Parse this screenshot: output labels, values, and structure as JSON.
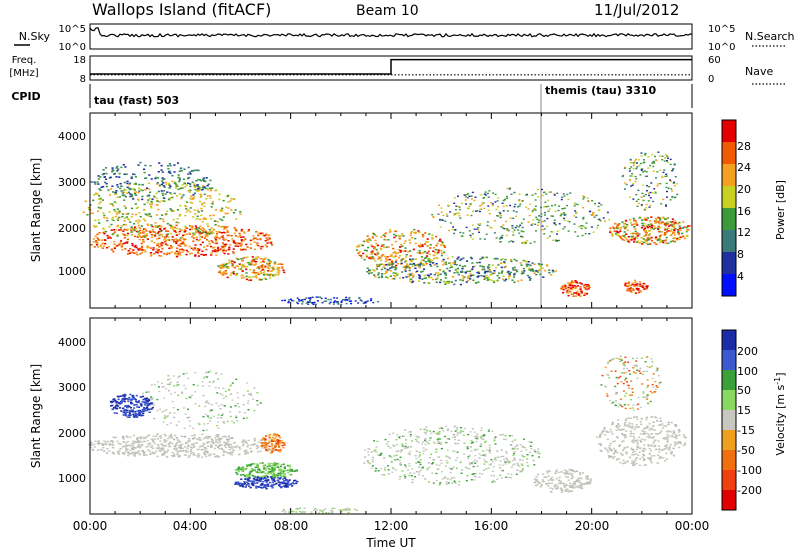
{
  "header": {
    "station": "Wallops Island (fitACF)",
    "beam": "Beam 10",
    "date": "11/Jul/2012"
  },
  "noise_panel": {
    "left_label": "N.Sky",
    "right_label": "N.Search",
    "left_ticks": [
      "10^5",
      "10^0"
    ],
    "right_ticks": [
      "10^5",
      "10^0"
    ]
  },
  "freq_panel": {
    "left_label_1": "Freq.",
    "left_label_2": "[MHz]",
    "right_label": "Nave",
    "left_ticks": [
      "18",
      "8"
    ],
    "right_ticks": [
      "60",
      "0"
    ]
  },
  "cpid_panel": {
    "label": "CPID",
    "modes": [
      {
        "name": "tau (fast) 503",
        "start_hour": 0
      },
      {
        "name": "themis (tau) 3310",
        "start_hour": 18.1
      }
    ]
  },
  "power_panel": {
    "ylabel": "Slant Range [km]",
    "yticks": [
      "4000",
      "3000",
      "2000",
      "1000"
    ],
    "colorbar_label": "Power [dB]",
    "colorbar_ticks": [
      "28",
      "24",
      "20",
      "16",
      "12",
      "8",
      "4"
    ]
  },
  "velocity_panel": {
    "ylabel": "Slant Range [km]",
    "yticks": [
      "4000",
      "3000",
      "2000",
      "1000"
    ],
    "colorbar_label": "Velocity [m s",
    "colorbar_label_sup": "-1",
    "colorbar_label_end": "]",
    "colorbar_ticks": [
      "200",
      "100",
      "50",
      "15",
      "-15",
      "-50",
      "-100",
      "-200"
    ]
  },
  "xaxis": {
    "label": "Time UT",
    "ticks": [
      "00:00",
      "04:00",
      "08:00",
      "12:00",
      "16:00",
      "20:00",
      "00:00"
    ]
  },
  "colors": {
    "power_scale": [
      "#e50000",
      "#f05a00",
      "#f5a020",
      "#c8d020",
      "#3c9a3c",
      "#3a7a7a",
      "#2030a0",
      "#0010ff"
    ],
    "velocity_scale": [
      "#1c2ca8",
      "#3c5ad0",
      "#3aa03a",
      "#8ad860",
      "#c8c8c0",
      "#f0a020",
      "#f07010",
      "#f04010",
      "#e00000"
    ]
  },
  "chart_data": [
    {
      "type": "line",
      "title": "N.Sky / N.Search",
      "x_range_hours": [
        0,
        24
      ],
      "left_axis": {
        "ticks": [
          "10^0",
          "10^5"
        ],
        "scale": "log"
      },
      "right_axis": {
        "ticks": [
          "10^0",
          "10^5"
        ],
        "scale": "log"
      },
      "series": [
        {
          "name": "N.Sky",
          "style": "solid",
          "level_fraction": 0.55
        },
        {
          "name": "N.Search",
          "style": "dotted"
        }
      ]
    },
    {
      "type": "line",
      "x_range_hours": [
        0,
        24
      ],
      "left_axis": {
        "label": "Freq. [MHz]",
        "range": [
          8,
          18
        ]
      },
      "right_axis": {
        "label": "Nave",
        "range": [
          0,
          60
        ]
      },
      "series": [
        {
          "name": "Freq.",
          "style": "solid",
          "x": [
            0,
            12,
            12,
            24
          ],
          "y": [
            10.5,
            10.5,
            16.5,
            16.5
          ]
        },
        {
          "name": "Nave",
          "style": "dotted",
          "x": [
            0,
            24
          ],
          "y": [
            13,
            13
          ]
        }
      ]
    },
    {
      "type": "heatmap",
      "quantity": "Power",
      "ylabel": "Slant Range [km]",
      "ylim": [
        180,
        4500
      ],
      "xlim_hours": [
        0,
        24
      ],
      "colorbar": {
        "label": "Power [dB]",
        "range": [
          0,
          32
        ],
        "ticks": [
          4,
          8,
          12,
          16,
          20,
          24,
          28
        ]
      }
    },
    {
      "type": "heatmap",
      "quantity": "Velocity",
      "ylabel": "Slant Range [km]",
      "ylim": [
        180,
        4500
      ],
      "xlim_hours": [
        0,
        24
      ],
      "colorbar": {
        "label": "Velocity [m s-1]",
        "ticks": [
          -200,
          -100,
          -50,
          -15,
          15,
          50,
          100,
          200
        ]
      }
    }
  ]
}
